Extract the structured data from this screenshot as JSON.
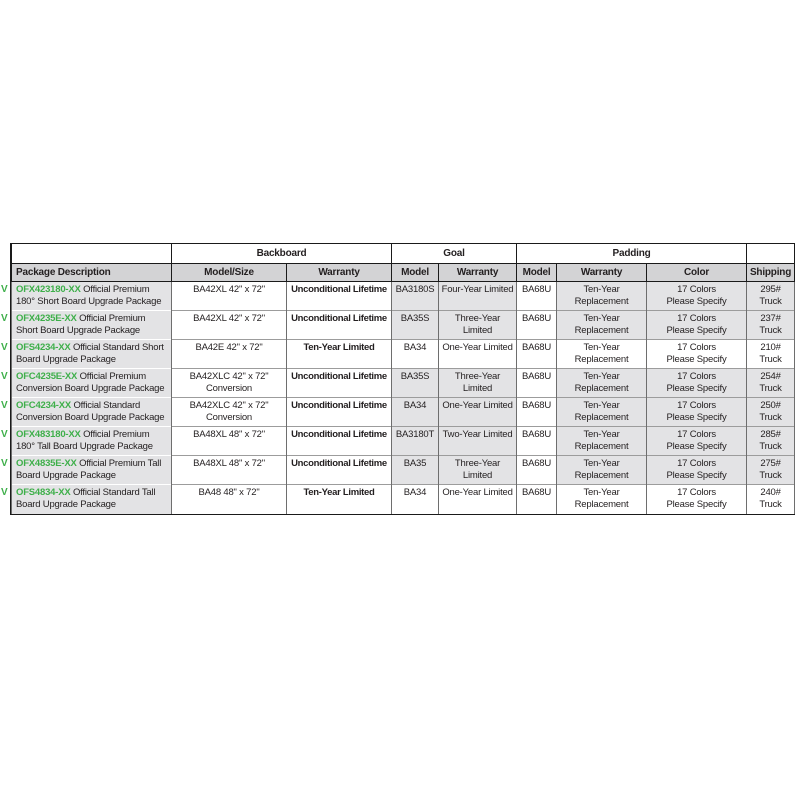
{
  "colors": {
    "accent_green": "#3eaf4a",
    "row_shade": "#e3e3e5",
    "subheader_shade": "#d3d3d5"
  },
  "table": {
    "row_marker": "V",
    "groups": [
      {
        "label": "",
        "name": "group-header-blank-left",
        "span": 1
      },
      {
        "label": "Backboard",
        "name": "group-header-backboard",
        "span": 2
      },
      {
        "label": "Goal",
        "name": "group-header-goal",
        "span": 2
      },
      {
        "label": "Padding",
        "name": "group-header-padding",
        "span": 3
      },
      {
        "label": "",
        "name": "group-header-blank-right",
        "span": 1
      }
    ],
    "columns": [
      "Package Description",
      "Model/Size",
      "Warranty",
      "Model",
      "Warranty",
      "Model",
      "Warranty",
      "Color",
      "Shipping"
    ],
    "rows": [
      {
        "part_number": "OFX423180-XX",
        "description": "Official Premium 180° Short Board Upgrade Package",
        "backboard_model": "BA42XL 42\" x 72\"",
        "backboard_warranty": "Unconditional Lifetime",
        "goal_model": "BA3180S",
        "goal_warranty": "Four-Year Limited",
        "padding_model": "BA68U",
        "padding_warranty": "Ten-Year\nReplacement",
        "padding_color": "17 Colors\nPlease Specify",
        "shipping": "295#\nTruck",
        "shaded": true
      },
      {
        "part_number": "OFX4235E-XX",
        "description": "Official Premium Short Board Upgrade Package",
        "backboard_model": "BA42XL 42\" x 72\"",
        "backboard_warranty": "Unconditional Lifetime",
        "goal_model": "BA35S",
        "goal_warranty": "Three-Year\nLimited",
        "padding_model": "BA68U",
        "padding_warranty": "Ten-Year\nReplacement",
        "padding_color": "17 Colors\nPlease Specify",
        "shipping": "237#\nTruck",
        "shaded": true
      },
      {
        "part_number": "OFS4234-XX",
        "description": "Official Standard Short Board Upgrade Package",
        "backboard_model": "BA42E 42\" x 72\"",
        "backboard_warranty": "Ten-Year Limited",
        "goal_model": "BA34",
        "goal_warranty": "One-Year Limited",
        "padding_model": "BA68U",
        "padding_warranty": "Ten-Year\nReplacement",
        "padding_color": "17 Colors\nPlease Specify",
        "shipping": "210#\nTruck",
        "shaded": false
      },
      {
        "part_number": "OFC4235E-XX",
        "description": "Official Premium Conversion Board Upgrade Package",
        "backboard_model": "BA42XLC 42\" x 72\"\nConversion",
        "backboard_warranty": "Unconditional Lifetime",
        "goal_model": "BA35S",
        "goal_warranty": "Three-Year\nLimited",
        "padding_model": "BA68U",
        "padding_warranty": "Ten-Year\nReplacement",
        "padding_color": "17 Colors\nPlease Specify",
        "shipping": "254#\nTruck",
        "shaded": true
      },
      {
        "part_number": "OFC4234-XX",
        "description": "Official Standard Conversion Board Upgrade Package",
        "backboard_model": "BA42XLC 42\" x 72\"\nConversion",
        "backboard_warranty": "Unconditional Lifetime",
        "goal_model": "BA34",
        "goal_warranty": "One-Year Limited",
        "padding_model": "BA68U",
        "padding_warranty": "Ten-Year\nReplacement",
        "padding_color": "17 Colors\nPlease Specify",
        "shipping": "250#\nTruck",
        "shaded": true
      },
      {
        "part_number": "OFX483180-XX",
        "description": "Official Premium 180° Tall Board Upgrade Package",
        "backboard_model": "BA48XL 48\" x 72\"",
        "backboard_warranty": "Unconditional Lifetime",
        "goal_model": "BA3180T",
        "goal_warranty": "Two-Year Limited",
        "padding_model": "BA68U",
        "padding_warranty": "Ten-Year\nReplacement",
        "padding_color": "17 Colors\nPlease Specify",
        "shipping": "285#\nTruck",
        "shaded": true
      },
      {
        "part_number": "OFX4835E-XX",
        "description": "Official Premium Tall Board Upgrade Package",
        "backboard_model": "BA48XL 48\" x 72\"",
        "backboard_warranty": "Unconditional Lifetime",
        "goal_model": "BA35",
        "goal_warranty": "Three-Year\nLimited",
        "padding_model": "BA68U",
        "padding_warranty": "Ten-Year\nReplacement",
        "padding_color": "17 Colors\nPlease Specify",
        "shipping": "275#\nTruck",
        "shaded": true
      },
      {
        "part_number": "OFS4834-XX",
        "description": "Official Standard Tall Board Upgrade Package",
        "backboard_model": "BA48 48\" x 72\"",
        "backboard_warranty": "Ten-Year Limited",
        "goal_model": "BA34",
        "goal_warranty": "One-Year Limited",
        "padding_model": "BA68U",
        "padding_warranty": "Ten-Year\nReplacement",
        "padding_color": "17 Colors\nPlease Specify",
        "shipping": "240#\nTruck",
        "shaded": false
      }
    ]
  }
}
